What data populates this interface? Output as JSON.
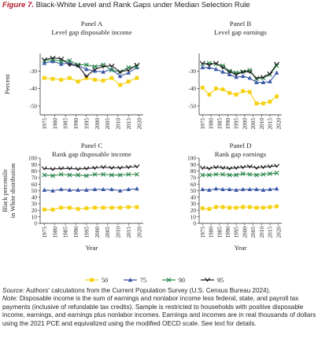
{
  "figure": {
    "label": "Figure 7.",
    "title": "Black-White Level and Rank Gaps under Median Selection Rule"
  },
  "chart_data": [
    {
      "panel": "Panel A",
      "title": "Level gap disposable income",
      "type": "line",
      "ylabel": "Percent",
      "xlabel": "",
      "ylim": [
        -55,
        -20
      ],
      "yticks": [
        -50,
        -40,
        -30
      ],
      "xticks": [
        1975,
        1980,
        1985,
        1990,
        1995,
        2000,
        2005,
        2010,
        2015,
        2020
      ],
      "x": [
        1975,
        1979,
        1983,
        1987,
        1991,
        1995,
        1999,
        2003,
        2007,
        2011,
        2015,
        2019
      ],
      "series": [
        {
          "name": "50",
          "color": "#f5d10f",
          "marker": "square",
          "values": [
            -34,
            -34.5,
            -35,
            -34,
            -36,
            -34,
            -35,
            -35.5,
            -34,
            -38,
            -36,
            -34
          ]
        },
        {
          "name": "75",
          "color": "#3b58a8",
          "marker": "triangle",
          "values": [
            -25.5,
            -24.5,
            -26,
            -25.5,
            -27,
            -29,
            -30,
            -30.5,
            -29,
            -33,
            -31,
            -28
          ]
        },
        {
          "name": "90",
          "color": "#2e8a4f",
          "marker": "x",
          "values": [
            -24,
            -23.5,
            -24.5,
            -24,
            -26.5,
            -26.5,
            -27.5,
            -26.5,
            -29.5,
            -30.5,
            -28,
            -27.5
          ]
        },
        {
          "name": "95",
          "color": "#231f20",
          "marker": "v",
          "values": [
            -23.5,
            -22.5,
            -23,
            -26.5,
            -27,
            -33,
            -29,
            -27.5,
            -27,
            -30.5,
            -29.5,
            -26.5
          ]
        }
      ]
    },
    {
      "panel": "Panel B",
      "title": "Level gap earnings",
      "type": "line",
      "ylabel": "",
      "xlabel": "",
      "ylim": [
        -55,
        -20
      ],
      "yticks": [
        -50,
        -40,
        -30
      ],
      "xticks": [
        1975,
        1980,
        1985,
        1990,
        1995,
        2000,
        2005,
        2010,
        2015,
        2020
      ],
      "x": [
        1975,
        1979,
        1983,
        1987,
        1991,
        1995,
        1999,
        2003,
        2007,
        2011,
        2015,
        2019
      ],
      "series": [
        {
          "name": "50",
          "color": "#f5d10f",
          "marker": "square",
          "values": [
            -39.5,
            -43.5,
            -40,
            -40.5,
            -42.5,
            -43.5,
            -41.5,
            -42,
            -48.5,
            -48.5,
            -47.5,
            -44.5
          ]
        },
        {
          "name": "75",
          "color": "#3b58a8",
          "marker": "triangle",
          "values": [
            -28,
            -28,
            -29,
            -30.5,
            -32,
            -33.5,
            -33,
            -34,
            -36.5,
            -36.5,
            -36,
            -31
          ]
        },
        {
          "name": "90",
          "color": "#2e8a4f",
          "marker": "x",
          "values": [
            -26,
            -25.5,
            -26,
            -27,
            -30,
            -31,
            -30.5,
            -29.5,
            -34.5,
            -34,
            -32,
            -27
          ]
        },
        {
          "name": "95",
          "color": "#231f20",
          "marker": "v",
          "values": [
            -25.5,
            -26.5,
            -25.5,
            -28,
            -30.5,
            -32,
            -30.5,
            -30.5,
            -34,
            -33.5,
            -31.5,
            -26
          ]
        }
      ]
    },
    {
      "panel": "Panel C",
      "title": "Rank gap disposable income",
      "type": "line",
      "ylabel": "Black percentile in White distribution",
      "xlabel": "Year",
      "ylim": [
        0,
        100
      ],
      "yticks": [
        0,
        10,
        20,
        30,
        40,
        50,
        60,
        70,
        80,
        90,
        100
      ],
      "xticks": [
        1975,
        1980,
        1985,
        1990,
        1995,
        2000,
        2005,
        2010,
        2015,
        2020
      ],
      "x": [
        1975,
        1979,
        1983,
        1987,
        1991,
        1995,
        1999,
        2003,
        2007,
        2011,
        2015,
        2019
      ],
      "series": [
        {
          "name": "50",
          "color": "#f5d10f",
          "marker": "square",
          "values": [
            21,
            21,
            24,
            24,
            22,
            23,
            24,
            24,
            24,
            24,
            25,
            25
          ]
        },
        {
          "name": "75",
          "color": "#3b58a8",
          "marker": "triangle",
          "values": [
            51,
            50,
            52,
            51,
            51,
            51,
            52,
            52,
            52,
            50,
            52,
            53
          ]
        },
        {
          "name": "90",
          "color": "#2e8a4f",
          "marker": "x",
          "values": [
            74,
            73,
            75,
            74,
            74,
            73,
            75,
            75,
            74,
            74,
            75,
            75
          ]
        },
        {
          "name": "95",
          "color": "#231f20",
          "marker": "v",
          "values": [
            84,
            83,
            84,
            84,
            83,
            84,
            85,
            86,
            85,
            85,
            86,
            87
          ]
        }
      ]
    },
    {
      "panel": "Panel D",
      "title": "Rank gap earnings",
      "type": "line",
      "ylabel": "",
      "xlabel": "Year",
      "ylim": [
        0,
        100
      ],
      "yticks": [
        0,
        10,
        20,
        30,
        40,
        50,
        60,
        70,
        80,
        90,
        100
      ],
      "xticks": [
        1975,
        1980,
        1985,
        1990,
        1995,
        2000,
        2005,
        2010,
        2015,
        2020
      ],
      "x": [
        1975,
        1979,
        1983,
        1987,
        1991,
        1995,
        1999,
        2003,
        2007,
        2011,
        2015,
        2019
      ],
      "series": [
        {
          "name": "50",
          "color": "#f5d10f",
          "marker": "square",
          "values": [
            23,
            22,
            25,
            25,
            24,
            24,
            25,
            25,
            24,
            24,
            25,
            26
          ]
        },
        {
          "name": "75",
          "color": "#3b58a8",
          "marker": "triangle",
          "values": [
            52,
            51,
            53,
            52,
            52,
            51,
            52,
            52,
            52,
            51,
            52,
            53
          ]
        },
        {
          "name": "90",
          "color": "#2e8a4f",
          "marker": "x",
          "values": [
            74,
            74,
            75,
            75,
            74,
            74,
            76,
            75,
            74,
            75,
            76,
            77
          ]
        },
        {
          "name": "95",
          "color": "#231f20",
          "marker": "v",
          "values": [
            85,
            84,
            86,
            85,
            84,
            85,
            86,
            87,
            85,
            86,
            87,
            88
          ]
        }
      ]
    }
  ],
  "legend": {
    "placement": "bottom",
    "items": [
      {
        "name": "50",
        "color": "#f5d10f",
        "marker": "square"
      },
      {
        "name": "75",
        "color": "#3b58a8",
        "marker": "triangle"
      },
      {
        "name": "90",
        "color": "#2e8a4f",
        "marker": "x"
      },
      {
        "name": "95",
        "color": "#231f20",
        "marker": "v"
      }
    ]
  },
  "notes": {
    "source_label": "Source:",
    "source_text": "Authors' calculations from the Current Population Survey (U.S. Census Bureau 2024).",
    "note_label": "Note:",
    "note_text": "Disposable income is the sum of earnings and nonlabor income less federal, state, and payroll tax payments (inclusive of refundable tax credits). Sample is restricted to households with positive disposable income, earnings, and earnings plus nonlabor incomes. Earnings and incomes are in real thousands of dollars using the 2021 PCE and equivalized using the modified OECD scale. See text for details."
  }
}
